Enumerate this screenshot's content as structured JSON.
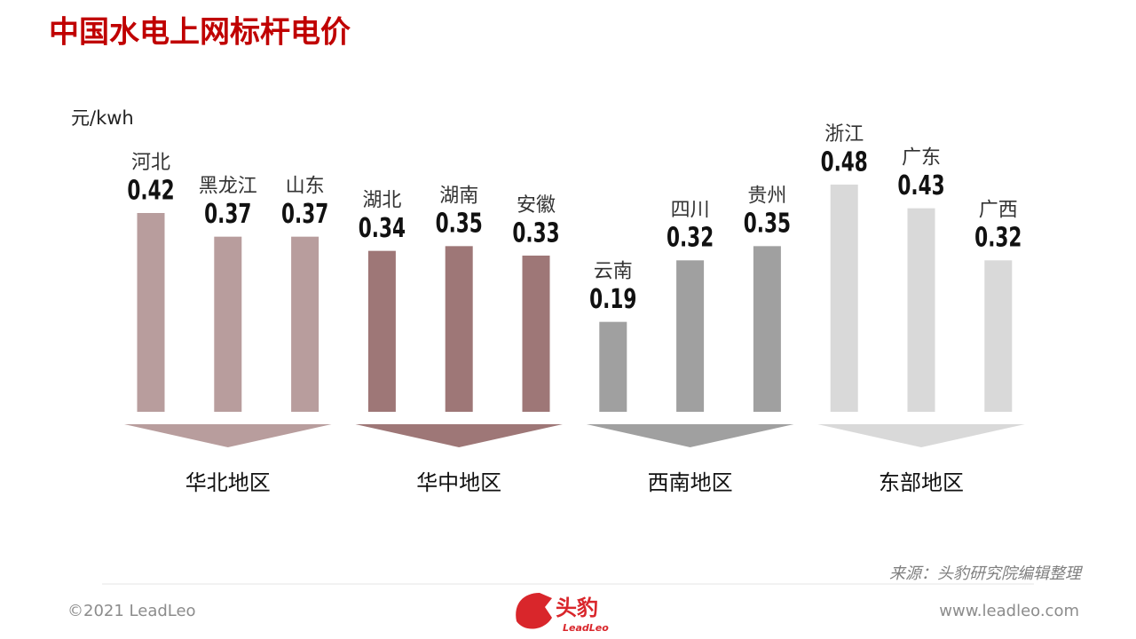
{
  "chart_data": {
    "type": "bar",
    "title": "中国水电上网标杆电价",
    "unit_label": "元/kwh",
    "groups": [
      {
        "name": "华北地区",
        "color": "#b89d9d",
        "categories": [
          "河北",
          "黑龙江",
          "山东"
        ],
        "values": [
          0.42,
          0.37,
          0.37
        ]
      },
      {
        "name": "华中地区",
        "color": "#9e7777",
        "categories": [
          "湖北",
          "湖南",
          "安徽"
        ],
        "values": [
          0.34,
          0.35,
          0.33
        ]
      },
      {
        "name": "西南地区",
        "color": "#a0a0a0",
        "categories": [
          "云南",
          "四川",
          "贵州"
        ],
        "values": [
          0.19,
          0.32,
          0.35
        ]
      },
      {
        "name": "东部地区",
        "color": "#d9d9d9",
        "categories": [
          "浙江",
          "广东",
          "广西"
        ],
        "values": [
          0.48,
          0.43,
          0.32
        ]
      }
    ],
    "source": "来源：头豹研究院编辑整理"
  },
  "footer": {
    "copyright": "©2021 LeadLeo",
    "logo_cn": "头豹",
    "logo_en": "LeadLeo",
    "website": "www.leadleo.com"
  }
}
